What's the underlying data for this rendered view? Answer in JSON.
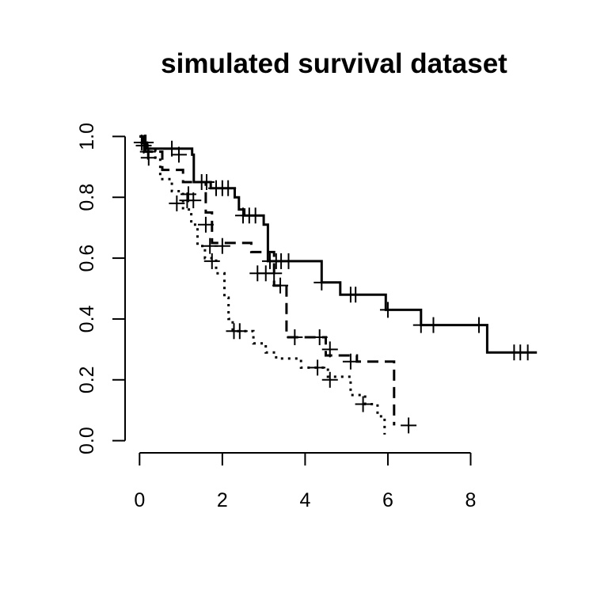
{
  "chart_data": {
    "type": "line",
    "subtype": "kaplan-meier step curves with censoring marks",
    "title": "simulated survival dataset",
    "xlabel": "",
    "ylabel": "",
    "xlim": [
      -0.35,
      9.75
    ],
    "ylim": [
      -0.04,
      1.04
    ],
    "x_ticks": [
      0,
      2,
      4,
      6,
      8
    ],
    "x_tick_labels": [
      "0",
      "2",
      "4",
      "6",
      "8"
    ],
    "y_ticks": [
      0,
      0.2,
      0.4,
      0.6,
      0.8,
      1.0
    ],
    "y_tick_labels": [
      "0.0",
      "0.2",
      "0.4",
      "0.6",
      "0.8",
      "1.0"
    ],
    "grid": false,
    "legend": "none",
    "series": [
      {
        "line_style": "solid",
        "steps": [
          [
            0,
            1.0
          ],
          [
            0.08,
            0.98
          ],
          [
            0.18,
            0.96
          ],
          [
            1.27,
            0.94
          ],
          [
            1.31,
            0.85
          ],
          [
            1.72,
            0.83
          ],
          [
            2.3,
            0.8
          ],
          [
            2.4,
            0.76
          ],
          [
            2.53,
            0.74
          ],
          [
            3.0,
            0.71
          ],
          [
            3.1,
            0.59
          ],
          [
            4.4,
            0.52
          ],
          [
            4.85,
            0.48
          ],
          [
            5.95,
            0.43
          ],
          [
            6.8,
            0.38
          ],
          [
            8.4,
            0.29
          ]
        ],
        "end_x": 9.6,
        "censored": [
          [
            0.05,
            0.98
          ],
          [
            0.15,
            0.98
          ],
          [
            0.78,
            0.96
          ],
          [
            0.95,
            0.94
          ],
          [
            1.5,
            0.85
          ],
          [
            1.62,
            0.85
          ],
          [
            1.85,
            0.83
          ],
          [
            2.0,
            0.83
          ],
          [
            2.14,
            0.83
          ],
          [
            2.5,
            0.74
          ],
          [
            2.65,
            0.74
          ],
          [
            2.8,
            0.74
          ],
          [
            3.15,
            0.59
          ],
          [
            3.3,
            0.59
          ],
          [
            3.42,
            0.59
          ],
          [
            3.6,
            0.59
          ],
          [
            4.4,
            0.52
          ],
          [
            5.1,
            0.48
          ],
          [
            5.22,
            0.48
          ],
          [
            6.0,
            0.43
          ],
          [
            6.8,
            0.38
          ],
          [
            7.1,
            0.38
          ],
          [
            8.2,
            0.38
          ],
          [
            9.05,
            0.29
          ],
          [
            9.2,
            0.29
          ],
          [
            9.38,
            0.29
          ]
        ]
      },
      {
        "line_style": "dashed",
        "steps": [
          [
            0,
            1.0
          ],
          [
            0.08,
            0.97
          ],
          [
            0.14,
            0.95
          ],
          [
            0.55,
            0.89
          ],
          [
            1.05,
            0.85
          ],
          [
            1.6,
            0.75
          ],
          [
            1.75,
            0.65
          ],
          [
            2.7,
            0.62
          ],
          [
            3.25,
            0.51
          ],
          [
            3.55,
            0.34
          ],
          [
            4.5,
            0.28
          ],
          [
            5.25,
            0.26
          ],
          [
            6.15,
            0.05
          ]
        ],
        "end_x": 6.15,
        "censored": [
          [
            0.12,
            0.98
          ],
          [
            0.2,
            0.95
          ],
          [
            1.18,
            0.81
          ],
          [
            1.6,
            0.71
          ],
          [
            1.7,
            0.64
          ],
          [
            2.0,
            0.64
          ],
          [
            2.85,
            0.55
          ],
          [
            3.05,
            0.55
          ],
          [
            3.25,
            0.55
          ],
          [
            3.4,
            0.51
          ],
          [
            3.75,
            0.34
          ],
          [
            4.35,
            0.34
          ],
          [
            4.6,
            0.3
          ],
          [
            5.1,
            0.26
          ],
          [
            6.5,
            0.05
          ]
        ]
      },
      {
        "line_style": "dotted",
        "steps": [
          [
            0,
            1.0
          ],
          [
            0.05,
            0.98
          ],
          [
            0.13,
            0.96
          ],
          [
            0.38,
            0.93
          ],
          [
            0.5,
            0.86
          ],
          [
            0.78,
            0.82
          ],
          [
            1.05,
            0.76
          ],
          [
            1.25,
            0.71
          ],
          [
            1.4,
            0.64
          ],
          [
            1.58,
            0.6
          ],
          [
            1.85,
            0.55
          ],
          [
            2.05,
            0.47
          ],
          [
            2.15,
            0.4
          ],
          [
            2.25,
            0.36
          ],
          [
            2.75,
            0.32
          ],
          [
            3.05,
            0.29
          ],
          [
            3.3,
            0.27
          ],
          [
            3.9,
            0.24
          ],
          [
            4.55,
            0.21
          ],
          [
            5.1,
            0.15
          ],
          [
            5.45,
            0.12
          ],
          [
            5.75,
            0.08
          ],
          [
            5.92,
            0.02
          ]
        ],
        "end_x": 5.92,
        "censored": [
          [
            0.1,
            0.97
          ],
          [
            0.22,
            0.93
          ],
          [
            0.9,
            0.78
          ],
          [
            1.15,
            0.79
          ],
          [
            1.3,
            0.79
          ],
          [
            1.75,
            0.59
          ],
          [
            2.28,
            0.36
          ],
          [
            2.42,
            0.36
          ],
          [
            4.3,
            0.24
          ],
          [
            4.6,
            0.2
          ],
          [
            5.4,
            0.12
          ]
        ]
      }
    ]
  }
}
